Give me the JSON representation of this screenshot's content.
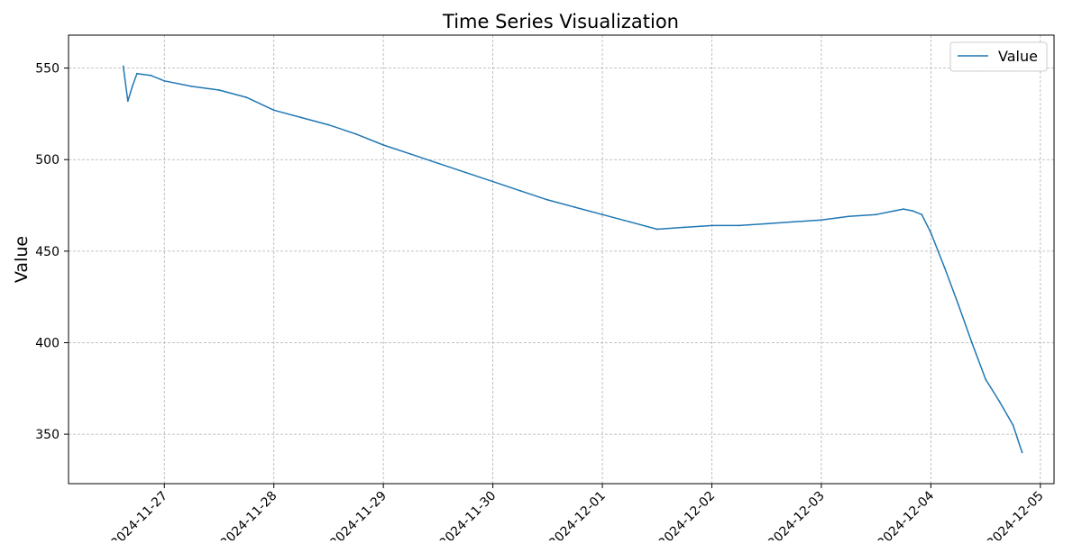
{
  "chart_data": {
    "type": "line",
    "title": "Time Series Visualization",
    "xlabel": "",
    "ylabel": "Value",
    "x_tick_labels": [
      "2024-11-27",
      "2024-11-28",
      "2024-11-29",
      "2024-11-30",
      "2024-12-01",
      "2024-12-02",
      "2024-12-03",
      "2024-12-04",
      "2024-12-05"
    ],
    "y_tick_labels": [
      "350",
      "400",
      "450",
      "500",
      "550"
    ],
    "xlim": [
      "2024-11-26 03:00",
      "2024-12-05 03:00"
    ],
    "ylim": [
      323,
      568
    ],
    "grid": true,
    "legend_position": "top-right",
    "series": [
      {
        "name": "Value",
        "color": "#1f77b4",
        "x": [
          "2024-11-26 15:00",
          "2024-11-26 16:00",
          "2024-11-26 17:00",
          "2024-11-26 18:00",
          "2024-11-26 21:00",
          "2024-11-27 00:00",
          "2024-11-27 06:00",
          "2024-11-27 12:00",
          "2024-11-27 18:00",
          "2024-11-28 00:00",
          "2024-11-28 06:00",
          "2024-11-28 12:00",
          "2024-11-28 18:00",
          "2024-11-29 00:00",
          "2024-11-29 06:00",
          "2024-11-29 12:00",
          "2024-11-29 18:00",
          "2024-11-30 00:00",
          "2024-11-30 06:00",
          "2024-11-30 12:00",
          "2024-11-30 18:00",
          "2024-12-01 00:00",
          "2024-12-01 06:00",
          "2024-12-01 12:00",
          "2024-12-01 18:00",
          "2024-12-02 00:00",
          "2024-12-02 06:00",
          "2024-12-02 12:00",
          "2024-12-02 18:00",
          "2024-12-03 00:00",
          "2024-12-03 06:00",
          "2024-12-03 12:00",
          "2024-12-03 16:00",
          "2024-12-03 18:00",
          "2024-12-03 20:00",
          "2024-12-03 22:00",
          "2024-12-04 00:00",
          "2024-12-04 03:00",
          "2024-12-04 06:00",
          "2024-12-04 09:00",
          "2024-12-04 12:00",
          "2024-12-04 15:00",
          "2024-12-04 18:00",
          "2024-12-04 20:00"
        ],
        "values": [
          551,
          532,
          540,
          547,
          546,
          543,
          540,
          538,
          534,
          527,
          523,
          519,
          514,
          508,
          503,
          498,
          493,
          488,
          483,
          478,
          474,
          470,
          466,
          462,
          463,
          464,
          464,
          465,
          466,
          467,
          469,
          470,
          472,
          473,
          472,
          470,
          460,
          441,
          421,
          400,
          380,
          368,
          355,
          340
        ]
      }
    ]
  }
}
